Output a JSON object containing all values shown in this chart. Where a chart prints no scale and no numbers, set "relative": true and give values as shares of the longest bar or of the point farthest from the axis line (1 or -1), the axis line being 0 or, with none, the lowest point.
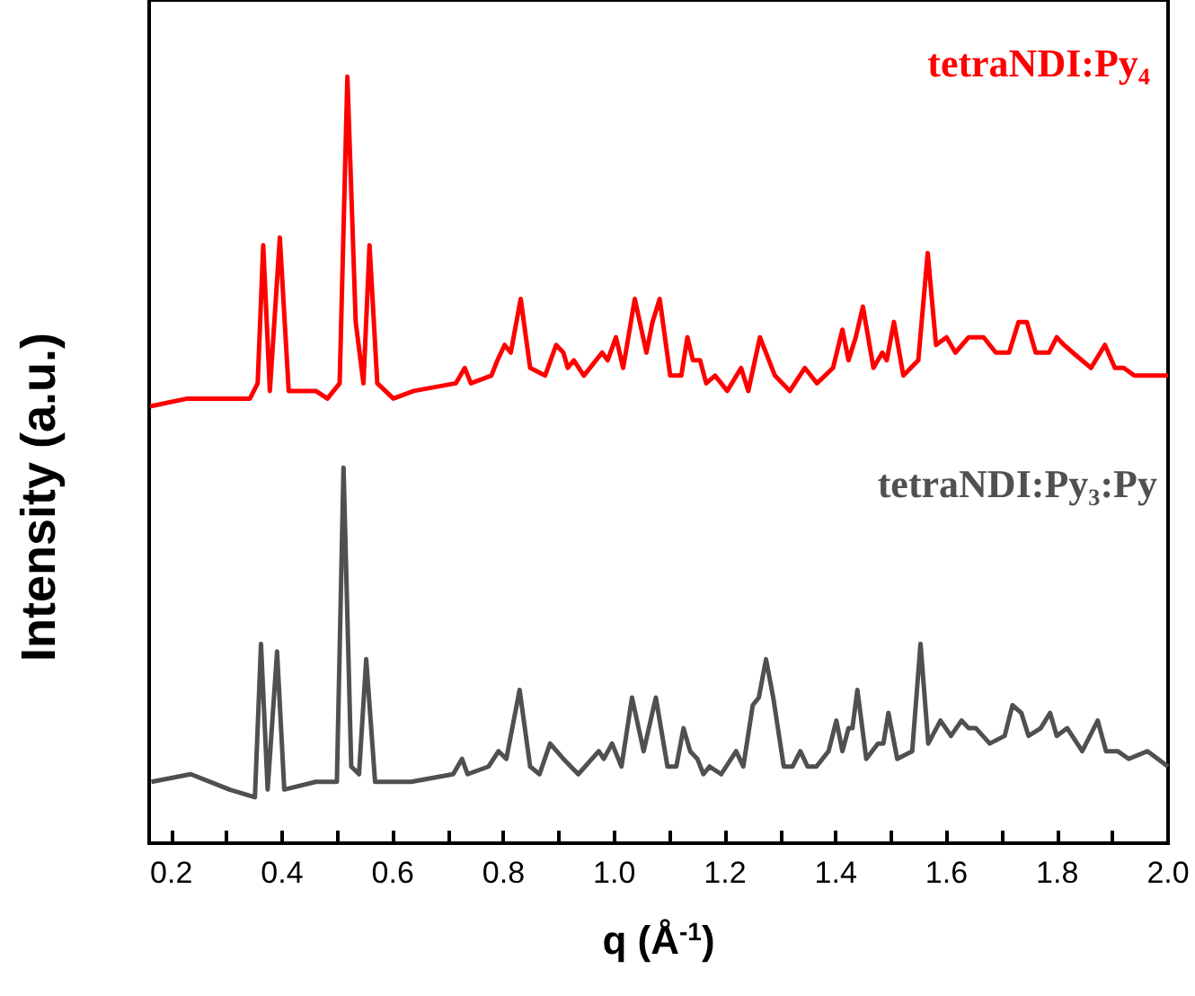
{
  "chart_data": {
    "type": "line",
    "relative": true,
    "xlabel": "q (Å$^{-1}$)",
    "ylabel": "Intensity (a.u.)",
    "xlim": [
      0.16,
      2.0
    ],
    "xticks": [
      0.2,
      {
        "value": 0.3,
        "label": null
      },
      0.4,
      {
        "value": 0.5,
        "label": null
      },
      0.6,
      {
        "value": 0.7,
        "label": null
      },
      0.8,
      {
        "value": 0.9,
        "label": null
      },
      {
        "value": 1,
        "label": "1.0"
      },
      {
        "value": 1.1,
        "label": null
      },
      1.2,
      {
        "value": 1.3,
        "label": null
      },
      1.4,
      {
        "value": 1.5,
        "label": null
      },
      1.6,
      {
        "value": 1.7,
        "label": null
      },
      1.8,
      {
        "value": 1.9,
        "label": null
      },
      {
        "value": 2,
        "label": "2.0"
      }
    ],
    "grid": false,
    "marker": "none",
    "line_style": "solid",
    "series": [
      {
        "name": "tetraNDI:Py₄",
        "color": "#ff0000",
        "x": [
          0.162,
          0.229,
          0.342,
          0.356,
          0.366,
          0.378,
          0.396,
          0.412,
          0.461,
          0.482,
          0.504,
          0.518,
          0.533,
          0.547,
          0.558,
          0.572,
          0.601,
          0.638,
          0.714,
          0.73,
          0.741,
          0.778,
          0.789,
          0.802,
          0.813,
          0.831,
          0.848,
          0.875,
          0.895,
          0.908,
          0.916,
          0.927,
          0.945,
          0.978,
          0.988,
          1.003,
          1.016,
          1.037,
          1.058,
          1.069,
          1.082,
          1.101,
          1.121,
          1.132,
          1.142,
          1.155,
          1.166,
          1.182,
          1.204,
          1.229,
          1.242,
          1.263,
          1.29,
          1.317,
          1.344,
          1.366,
          1.395,
          1.412,
          1.423,
          1.436,
          1.449,
          1.468,
          1.484,
          1.492,
          1.505,
          1.522,
          1.549,
          1.566,
          1.581,
          1.6,
          1.616,
          1.64,
          1.667,
          1.689,
          1.713,
          1.73,
          1.745,
          1.761,
          1.785,
          1.799,
          1.812,
          1.828,
          1.861,
          1.886,
          1.904,
          1.92,
          1.939,
          1.974,
          2.0
        ],
        "values": [
          0.57,
          0.58,
          0.58,
          0.6,
          0.78,
          0.59,
          0.79,
          0.59,
          0.59,
          0.58,
          0.6,
          1.0,
          0.68,
          0.6,
          0.78,
          0.6,
          0.58,
          0.59,
          0.6,
          0.62,
          0.6,
          0.61,
          0.63,
          0.65,
          0.64,
          0.71,
          0.62,
          0.61,
          0.65,
          0.64,
          0.62,
          0.63,
          0.61,
          0.64,
          0.63,
          0.66,
          0.62,
          0.71,
          0.64,
          0.68,
          0.71,
          0.61,
          0.61,
          0.66,
          0.63,
          0.63,
          0.6,
          0.61,
          0.59,
          0.62,
          0.59,
          0.66,
          0.61,
          0.59,
          0.62,
          0.6,
          0.62,
          0.67,
          0.63,
          0.66,
          0.7,
          0.62,
          0.64,
          0.63,
          0.68,
          0.61,
          0.63,
          0.77,
          0.65,
          0.66,
          0.64,
          0.66,
          0.66,
          0.64,
          0.64,
          0.68,
          0.68,
          0.64,
          0.64,
          0.66,
          0.65,
          0.64,
          0.62,
          0.65,
          0.62,
          0.62,
          0.61,
          0.61,
          0.61
        ]
      },
      {
        "name": "tetraNDI:Py₃:Py",
        "color": "#505050",
        "x": [
          0.164,
          0.235,
          0.305,
          0.351,
          0.362,
          0.374,
          0.391,
          0.404,
          0.461,
          0.499,
          0.511,
          0.525,
          0.539,
          0.552,
          0.568,
          0.633,
          0.709,
          0.725,
          0.735,
          0.773,
          0.791,
          0.805,
          0.829,
          0.848,
          0.865,
          0.884,
          0.908,
          0.935,
          0.972,
          0.981,
          0.996,
          1.013,
          1.032,
          1.053,
          1.075,
          1.096,
          1.112,
          1.125,
          1.137,
          1.15,
          1.161,
          1.172,
          1.193,
          1.22,
          1.233,
          1.25,
          1.261,
          1.274,
          1.287,
          1.306,
          1.322,
          1.336,
          1.349,
          1.365,
          1.387,
          1.401,
          1.412,
          1.423,
          1.43,
          1.439,
          1.455,
          1.476,
          1.486,
          1.495,
          1.511,
          1.538,
          1.553,
          1.567,
          1.589,
          1.608,
          1.627,
          1.64,
          1.653,
          1.678,
          1.705,
          1.719,
          1.735,
          1.748,
          1.77,
          1.787,
          1.799,
          1.818,
          1.845,
          1.873,
          1.888,
          1.909,
          1.929,
          1.963,
          2.0
        ],
        "values": [
          0.08,
          0.09,
          0.07,
          0.06,
          0.26,
          0.07,
          0.25,
          0.07,
          0.08,
          0.08,
          0.49,
          0.1,
          0.09,
          0.24,
          0.08,
          0.08,
          0.09,
          0.11,
          0.09,
          0.1,
          0.12,
          0.11,
          0.2,
          0.1,
          0.09,
          0.13,
          0.11,
          0.09,
          0.12,
          0.11,
          0.13,
          0.1,
          0.19,
          0.12,
          0.19,
          0.1,
          0.1,
          0.15,
          0.12,
          0.11,
          0.09,
          0.1,
          0.09,
          0.12,
          0.1,
          0.18,
          0.19,
          0.24,
          0.19,
          0.1,
          0.1,
          0.12,
          0.1,
          0.1,
          0.12,
          0.16,
          0.12,
          0.15,
          0.15,
          0.2,
          0.11,
          0.13,
          0.13,
          0.17,
          0.11,
          0.12,
          0.26,
          0.13,
          0.16,
          0.14,
          0.16,
          0.15,
          0.15,
          0.13,
          0.14,
          0.18,
          0.17,
          0.14,
          0.15,
          0.17,
          0.14,
          0.15,
          0.12,
          0.16,
          0.12,
          0.12,
          0.11,
          0.12,
          0.1
        ]
      }
    ]
  }
}
